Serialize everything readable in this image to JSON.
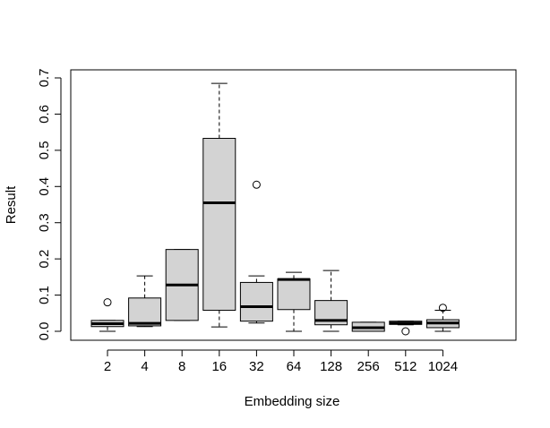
{
  "chart_data": {
    "type": "boxplot",
    "title": "",
    "xlabel": "Embedding size",
    "ylabel": "Result",
    "ylim": [
      0,
      0.7
    ],
    "yticks": [
      "0.0",
      "0.1",
      "0.2",
      "0.3",
      "0.4",
      "0.5",
      "0.6",
      "0.7"
    ],
    "box_fill": "#d3d3d3",
    "grid": false,
    "categories": [
      "2",
      "4",
      "8",
      "16",
      "32",
      "64",
      "128",
      "256",
      "512",
      "1024"
    ],
    "boxes": [
      {
        "category": "2",
        "whisker_low": 0.0,
        "q1": 0.013,
        "median": 0.021,
        "q3": 0.03,
        "whisker_high": 0.03,
        "outliers": [
          0.08
        ]
      },
      {
        "category": "4",
        "whisker_low": 0.013,
        "q1": 0.015,
        "median": 0.022,
        "q3": 0.092,
        "whisker_high": 0.153,
        "outliers": []
      },
      {
        "category": "8",
        "whisker_low": 0.03,
        "q1": 0.03,
        "median": 0.128,
        "q3": 0.226,
        "whisker_high": 0.226,
        "outliers": []
      },
      {
        "category": "16",
        "whisker_low": 0.012,
        "q1": 0.058,
        "median": 0.355,
        "q3": 0.533,
        "whisker_high": 0.685,
        "outliers": []
      },
      {
        "category": "32",
        "whisker_low": 0.023,
        "q1": 0.028,
        "median": 0.068,
        "q3": 0.135,
        "whisker_high": 0.153,
        "outliers": [
          0.405
        ]
      },
      {
        "category": "64",
        "whisker_low": 0.0,
        "q1": 0.06,
        "median": 0.143,
        "q3": 0.145,
        "whisker_high": 0.163,
        "outliers": []
      },
      {
        "category": "128",
        "whisker_low": 0.0,
        "q1": 0.018,
        "median": 0.03,
        "q3": 0.085,
        "whisker_high": 0.168,
        "outliers": []
      },
      {
        "category": "256",
        "whisker_low": 0.0,
        "q1": 0.0,
        "median": 0.01,
        "q3": 0.025,
        "whisker_high": 0.025,
        "outliers": []
      },
      {
        "category": "512",
        "whisker_low": 0.018,
        "q1": 0.019,
        "median": 0.023,
        "q3": 0.028,
        "whisker_high": 0.028,
        "outliers": [
          0.0
        ]
      },
      {
        "category": "1024",
        "whisker_low": 0.0,
        "q1": 0.01,
        "median": 0.023,
        "q3": 0.032,
        "whisker_high": 0.058,
        "outliers": [
          0.065
        ]
      }
    ]
  }
}
